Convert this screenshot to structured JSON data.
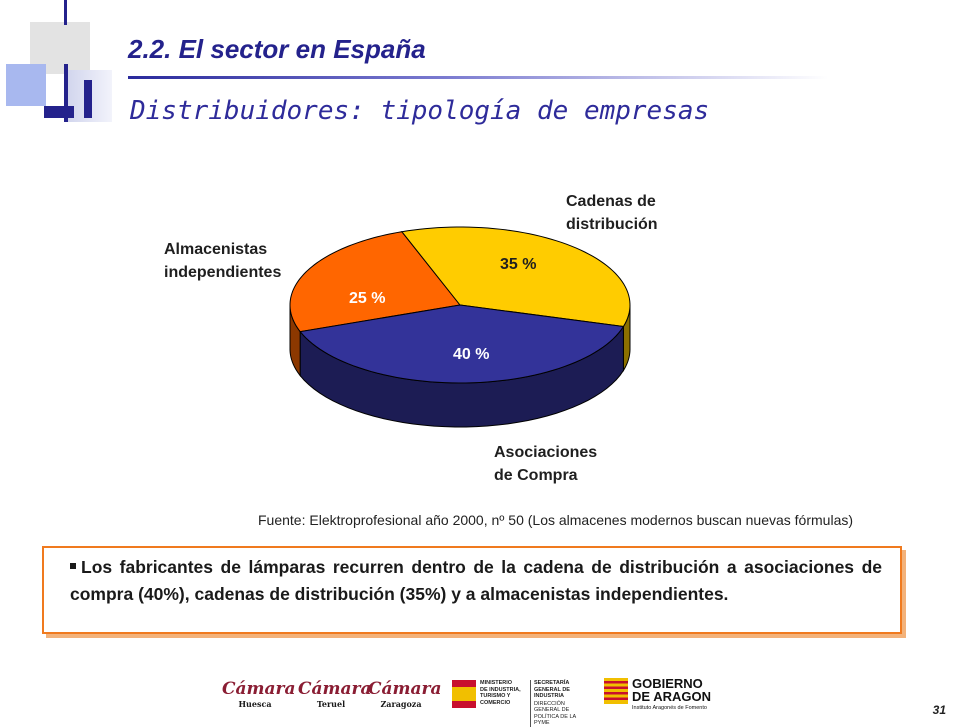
{
  "header": {
    "title": "2.2. El sector en España",
    "subtitle": "Distribuidores: tipología de empresas"
  },
  "chart_data": {
    "type": "pie",
    "title": "",
    "slices": [
      {
        "label": "Almacenistas independientes",
        "label_lines": [
          "Almacenistas",
          "independientes"
        ],
        "value": 25,
        "value_label": "25 %",
        "color": "#ff6600"
      },
      {
        "label": "Cadenas de distribución",
        "label_lines": [
          "Cadenas de",
          "distribución"
        ],
        "value": 35,
        "value_label": "35 %",
        "color": "#ffcc00"
      },
      {
        "label": "Asociaciones de Compra",
        "label_lines": [
          "Asociaciones",
          "de Compra"
        ],
        "value": 40,
        "value_label": "40 %",
        "color": "#333399"
      }
    ],
    "three_d": true
  },
  "source": "Fuente: Elektroprofesional año 2000, nº 50  (Los almacenes modernos buscan nuevas fórmulas)",
  "summary": "Los fabricantes de lámparas recurren dentro de la cadena de distribución a asociaciones de compra (40%), cadenas de distribución (35%) y a almacenistas independientes.",
  "footer": {
    "logos": [
      {
        "name": "Cámara",
        "sub": "Huesca"
      },
      {
        "name": "Cámara",
        "sub": "Teruel"
      },
      {
        "name": "Cámara",
        "sub": "Zaragoza"
      }
    ],
    "ministry_lines": [
      "MINISTERIO",
      "DE INDUSTRIA,",
      "TURISMO Y",
      "COMERCIO"
    ],
    "secretaria_lines": [
      "SECRETARÍA GENERAL DE",
      "INDUSTRIA"
    ],
    "direccion_lines": [
      "DIRECCIÓN GENERAL DE",
      "POLÍTICA DE LA PYME"
    ],
    "gobierno_lines": [
      "GOBIERNO",
      "DE ARAGON"
    ],
    "gobierno_sub": "Instituto Aragonés de Fomento",
    "page_number": "31"
  }
}
